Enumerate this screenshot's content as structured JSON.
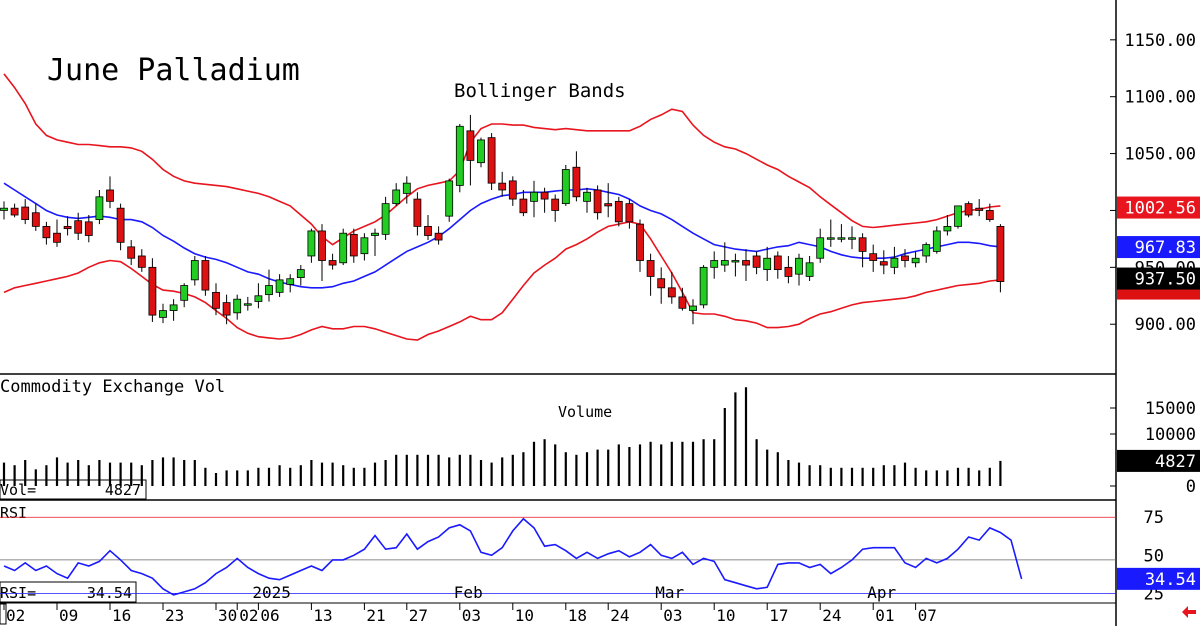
{
  "chart_data": {
    "type": "candlestick",
    "title": "June Palladium",
    "price_panel": {
      "label": "Bollinger Bands",
      "ylim": [
        858,
        1185
      ],
      "ticks": [
        "1150.00",
        "1100.00",
        "1050.00",
        "1000.00",
        "950.00",
        "900.00"
      ],
      "tick_values": [
        1150,
        1100,
        1050,
        1000,
        950,
        900
      ],
      "value_tags": [
        {
          "text": "1002.56",
          "value": 1002.56,
          "color": "#e8141e"
        },
        {
          "text": "967.83",
          "value": 967.83,
          "color": "#1a1aff"
        },
        {
          "text": "937.50",
          "value": 937.5,
          "color": "#000000"
        }
      ],
      "candles": [
        [
          1000,
          1008,
          992,
          1002
        ],
        [
          1002,
          1006,
          994,
          996
        ],
        [
          1003,
          1010,
          988,
          992
        ],
        [
          998,
          1006,
          982,
          986
        ],
        [
          986,
          990,
          970,
          976
        ],
        [
          980,
          992,
          968,
          972
        ],
        [
          986,
          995,
          978,
          984
        ],
        [
          991,
          998,
          974,
          980
        ],
        [
          990,
          996,
          972,
          978
        ],
        [
          992,
          1018,
          988,
          1012
        ],
        [
          1018,
          1030,
          1002,
          1008
        ],
        [
          1002,
          1006,
          965,
          972
        ],
        [
          968,
          974,
          952,
          958
        ],
        [
          960,
          966,
          946,
          950
        ],
        [
          950,
          958,
          902,
          908
        ],
        [
          906,
          918,
          901,
          912
        ],
        [
          912,
          922,
          903,
          917
        ],
        [
          921,
          936,
          915,
          934
        ],
        [
          939,
          960,
          934,
          956
        ],
        [
          956,
          960,
          925,
          930
        ],
        [
          928,
          936,
          908,
          914
        ],
        [
          919,
          926,
          900,
          908
        ],
        [
          910,
          926,
          904,
          922
        ],
        [
          918,
          924,
          912,
          918
        ],
        [
          920,
          936,
          914,
          925
        ],
        [
          926,
          948,
          920,
          934
        ],
        [
          928,
          944,
          924,
          939
        ],
        [
          935,
          944,
          928,
          940
        ],
        [
          941,
          952,
          934,
          948
        ],
        [
          960,
          984,
          954,
          982
        ],
        [
          982,
          988,
          938,
          956
        ],
        [
          956,
          962,
          948,
          952
        ],
        [
          954,
          984,
          952,
          980
        ],
        [
          979,
          984,
          954,
          960
        ],
        [
          962,
          980,
          956,
          976
        ],
        [
          978,
          984,
          960,
          980
        ],
        [
          979,
          1012,
          974,
          1006
        ],
        [
          1006,
          1024,
          1004,
          1018
        ],
        [
          1015,
          1030,
          1006,
          1024
        ],
        [
          1010,
          1016,
          978,
          986
        ],
        [
          986,
          996,
          974,
          978
        ],
        [
          980,
          986,
          970,
          974
        ],
        [
          995,
          1028,
          990,
          1026
        ],
        [
          1022,
          1076,
          1016,
          1074
        ],
        [
          1070,
          1084,
          1022,
          1044
        ],
        [
          1042,
          1064,
          1038,
          1062
        ],
        [
          1064,
          1068,
          1018,
          1024
        ],
        [
          1024,
          1034,
          1012,
          1018
        ],
        [
          1026,
          1030,
          1004,
          1010
        ],
        [
          1010,
          1018,
          995,
          998
        ],
        [
          1008,
          1026,
          994,
          1016
        ],
        [
          1016,
          1020,
          998,
          1010
        ],
        [
          1010,
          1014,
          990,
          1000
        ],
        [
          1006,
          1040,
          1004,
          1036
        ],
        [
          1038,
          1052,
          1008,
          1012
        ],
        [
          1008,
          1020,
          998,
          1016
        ],
        [
          1018,
          1022,
          992,
          998
        ],
        [
          1006,
          1024,
          994,
          1004
        ],
        [
          1008,
          1012,
          986,
          990
        ],
        [
          1006,
          1010,
          984,
          990
        ],
        [
          988,
          992,
          946,
          956
        ],
        [
          956,
          962,
          925,
          942
        ],
        [
          940,
          950,
          918,
          932
        ],
        [
          932,
          946,
          918,
          924
        ],
        [
          924,
          932,
          912,
          914
        ],
        [
          912,
          922,
          900,
          916
        ],
        [
          917,
          952,
          914,
          950
        ],
        [
          950,
          964,
          940,
          956
        ],
        [
          952,
          972,
          946,
          956
        ],
        [
          955,
          962,
          942,
          956
        ],
        [
          956,
          966,
          938,
          952
        ],
        [
          960,
          964,
          944,
          950
        ],
        [
          948,
          968,
          938,
          958
        ],
        [
          960,
          964,
          940,
          948
        ],
        [
          950,
          960,
          936,
          942
        ],
        [
          944,
          962,
          934,
          958
        ],
        [
          942,
          960,
          938,
          954
        ],
        [
          958,
          984,
          954,
          976
        ],
        [
          976,
          992,
          968,
          976
        ],
        [
          976,
          988,
          972,
          976
        ],
        [
          976,
          986,
          966,
          976
        ],
        [
          976,
          980,
          950,
          964
        ],
        [
          962,
          970,
          946,
          956
        ],
        [
          955,
          965,
          944,
          952
        ],
        [
          950,
          968,
          944,
          958
        ],
        [
          960,
          966,
          950,
          956
        ],
        [
          954,
          964,
          950,
          958
        ],
        [
          960,
          972,
          954,
          970
        ],
        [
          964,
          986,
          962,
          982
        ],
        [
          982,
          996,
          978,
          986
        ],
        [
          986,
          1004,
          984,
          1004
        ],
        [
          1006,
          1008,
          994,
          996
        ],
        [
          1002,
          1010,
          995,
          1000
        ],
        [
          1000,
          1006,
          990,
          992
        ],
        [
          986,
          988,
          928,
          937.5
        ]
      ],
      "middle_band": [
        1024,
        1018,
        1012,
        1006,
        1000,
        996,
        994,
        993,
        994,
        995,
        994,
        992,
        992,
        990,
        985,
        978,
        973,
        967,
        962,
        959,
        957,
        954,
        950,
        946,
        944,
        940,
        937,
        935,
        933,
        932,
        932,
        933,
        936,
        938,
        942,
        946,
        952,
        958,
        964,
        968,
        972,
        977,
        984,
        992,
        1000,
        1006,
        1010,
        1013,
        1014,
        1016,
        1016,
        1016,
        1017,
        1018,
        1018,
        1019,
        1018,
        1016,
        1014,
        1010,
        1004,
        1000,
        997,
        992,
        986,
        980,
        975,
        970,
        968,
        966,
        965,
        964,
        966,
        968,
        969,
        972,
        970,
        968,
        964,
        961,
        959,
        958,
        958,
        958,
        959,
        962,
        964,
        966,
        968,
        970,
        972,
        972,
        971,
        969,
        968
      ],
      "upper_band": [
        1120,
        1108,
        1094,
        1076,
        1066,
        1062,
        1060,
        1058,
        1058,
        1057,
        1056,
        1056,
        1055,
        1052,
        1045,
        1036,
        1030,
        1026,
        1024,
        1023,
        1022,
        1021,
        1019,
        1017,
        1015,
        1012,
        1008,
        1004,
        996,
        988,
        977,
        970,
        976,
        982,
        986,
        990,
        996,
        1004,
        1012,
        1019,
        1022,
        1024,
        1026,
        1035,
        1060,
        1072,
        1076,
        1076,
        1075,
        1075,
        1073,
        1072,
        1071,
        1072,
        1071,
        1070,
        1070,
        1070,
        1070,
        1070,
        1074,
        1080,
        1084,
        1089,
        1087,
        1075,
        1066,
        1060,
        1056,
        1054,
        1050,
        1045,
        1040,
        1036,
        1030,
        1025,
        1020,
        1012,
        1005,
        998,
        991,
        986,
        985,
        986,
        987,
        988,
        989,
        990,
        992,
        995,
        998,
        1000,
        1001,
        1003,
        1004
      ],
      "lower_band": [
        928,
        932,
        934,
        936,
        938,
        940,
        942,
        945,
        950,
        954,
        956,
        955,
        949,
        942,
        935,
        930,
        929,
        927,
        924,
        919,
        912,
        905,
        897,
        892,
        889,
        888,
        887,
        888,
        891,
        895,
        898,
        896,
        896,
        898,
        898,
        896,
        893,
        890,
        887,
        886,
        891,
        894,
        898,
        902,
        907,
        904,
        904,
        910,
        922,
        934,
        945,
        952,
        958,
        966,
        970,
        975,
        981,
        986,
        988,
        990,
        988,
        975,
        960,
        945,
        928,
        910,
        909,
        909,
        907,
        904,
        903,
        901,
        897,
        897,
        898,
        900,
        905,
        909,
        911,
        914,
        917,
        919,
        920,
        921,
        922,
        923,
        925,
        928,
        930,
        932,
        934,
        935,
        936,
        938,
        939
      ]
    },
    "volume_panel": {
      "label": "Commodity Exchange Vol",
      "series_label": "Volume",
      "readout": {
        "label": "Vol=",
        "value": "4827"
      },
      "ylim": [
        0,
        20000
      ],
      "ticks": [
        "15000",
        "10000",
        "0"
      ],
      "tick_values": [
        15000,
        10000,
        0
      ],
      "value_tag": {
        "text": "4827",
        "value": 4827
      },
      "values": [
        4500,
        4000,
        5000,
        3200,
        4000,
        5500,
        4500,
        5000,
        4000,
        5000,
        4500,
        4500,
        4500,
        4000,
        5000,
        5500,
        5500,
        5000,
        5000,
        3500,
        2500,
        3000,
        3000,
        3000,
        3500,
        3500,
        4000,
        3500,
        4000,
        5000,
        4500,
        4500,
        4000,
        3500,
        3500,
        4500,
        5000,
        6000,
        6000,
        6000,
        6000,
        6000,
        5500,
        6000,
        6000,
        5000,
        4500,
        5500,
        6000,
        6500,
        8500,
        9000,
        8000,
        6500,
        6000,
        6500,
        7000,
        7000,
        8000,
        7500,
        8000,
        8500,
        8000,
        8500,
        8500,
        8500,
        9000,
        9000,
        15000,
        18000,
        19000,
        9000,
        7000,
        6500,
        5000,
        4500,
        4000,
        4000,
        3500,
        3500,
        3500,
        3500,
        3500,
        4000,
        4000,
        4500,
        3500,
        3000,
        3000,
        3000,
        3500,
        3500,
        3000,
        3500,
        4827
      ]
    },
    "rsi_panel": {
      "label": "RSI",
      "readout": {
        "label": "RSI=",
        "value": "34.54"
      },
      "ylim": [
        20,
        85
      ],
      "ticks": [
        "75",
        "50",
        "25"
      ],
      "tick_values": [
        75,
        50,
        25
      ],
      "guide_lines": [
        {
          "value": 75,
          "color": "#e8141e"
        },
        {
          "value": 47,
          "color": "#666666"
        },
        {
          "value": 25,
          "color": "#1a1aff"
        }
      ],
      "value_tag": {
        "text": "34.54",
        "value": 34.54
      },
      "values": [
        43,
        40,
        45,
        40,
        43,
        38,
        35,
        45,
        43,
        46,
        53,
        47,
        40,
        38,
        35,
        28,
        24,
        26,
        28,
        32,
        38,
        42,
        48,
        42,
        38,
        35,
        34,
        37,
        40,
        43,
        40,
        47,
        47,
        50,
        54,
        63,
        54,
        55,
        64,
        54,
        59,
        62,
        68,
        70,
        66,
        52,
        50,
        55,
        66,
        74,
        68,
        56,
        57,
        53,
        48,
        52,
        48,
        51,
        53,
        49,
        52,
        57,
        50,
        48,
        52,
        44,
        48,
        46,
        34,
        32,
        30,
        28,
        29,
        44,
        45,
        45,
        42,
        44,
        38,
        42,
        47,
        54,
        55,
        55,
        55,
        45,
        42,
        48,
        45,
        48,
        54,
        62,
        60,
        68,
        65,
        60,
        34.54
      ]
    },
    "x_axis": {
      "labels": [
        {
          "text": "02",
          "idx": 0
        },
        {
          "text": "09",
          "idx": 5
        },
        {
          "text": "16",
          "idx": 10
        },
        {
          "text": "23",
          "idx": 15
        },
        {
          "text": "30",
          "idx": 20
        },
        {
          "text": "02",
          "idx": 22
        },
        {
          "text": "06",
          "idx": 24
        },
        {
          "text": "13",
          "idx": 29
        },
        {
          "text": "21",
          "idx": 34
        },
        {
          "text": "27",
          "idx": 38
        },
        {
          "text": "03",
          "idx": 43
        },
        {
          "text": "10",
          "idx": 48
        },
        {
          "text": "18",
          "idx": 53
        },
        {
          "text": "24",
          "idx": 57
        },
        {
          "text": "03",
          "idx": 62
        },
        {
          "text": "10",
          "idx": 67
        },
        {
          "text": "17",
          "idx": 72
        },
        {
          "text": "24",
          "idx": 77
        },
        {
          "text": "01",
          "idx": 82
        },
        {
          "text": "07",
          "idx": 86
        }
      ],
      "period_labels": [
        {
          "text": "2025",
          "idx": 24
        },
        {
          "text": "Feb",
          "idx": 43
        },
        {
          "text": "Mar",
          "idx": 62
        },
        {
          "text": "Apr",
          "idx": 82
        }
      ]
    },
    "colors": {
      "up": "#22cc22",
      "down": "#dd1111",
      "bands": "#e8141e",
      "middle": "#1a1aff",
      "rsi": "#1a1aff"
    },
    "grid": false
  }
}
